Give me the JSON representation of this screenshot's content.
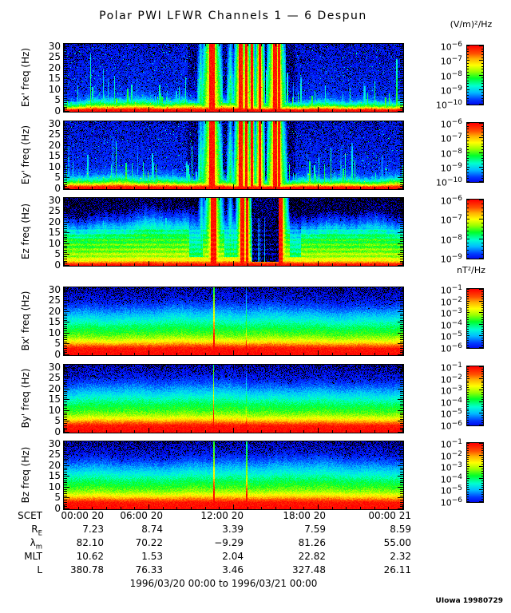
{
  "title": "Polar PWI LFWR Channels 1 — 6 Despun",
  "units": {
    "electric": "(V/m)²/Hz",
    "magnetic": "nT²/Hz"
  },
  "footer": {
    "date_range": "1996/03/20 00:00 to 1996/03/21 00:00",
    "credit": "UIowa 19980729"
  },
  "chart_data": {
    "type": "heatmap",
    "subtype": "spectrogram-stack",
    "title": "Polar PWI LFWR Channels 1 — 6 Despun",
    "colormap": {
      "high": "#ff0000",
      "mid": "#00ff00",
      "low": "#0000ff",
      "background_low": "#000000",
      "meaning": "red = high spectral density, blue/black = low"
    },
    "time_axis": {
      "tick_labels": [
        "00:00 20",
        "06:00 20",
        "12:00 20",
        "18:00 20",
        "00:00 21"
      ],
      "hours_total": 24,
      "major_tick_hours": 6,
      "minor_tick_hours": 1,
      "start": "1996/03/20 00:00",
      "end": "1996/03/21 00:00"
    },
    "freq_axis": {
      "min": 0,
      "max": 31,
      "major_ticks": [
        0,
        5,
        10,
        15,
        20,
        25,
        30
      ],
      "minor_tick_step": 1
    },
    "panels": [
      {
        "id": "ex",
        "ylabel": "Ex' freq (Hz)",
        "unit": "(V/m)²/Hz",
        "style": "E",
        "seed": 11,
        "colorbar_exponents": [
          -6,
          -7,
          -8,
          -9,
          -10
        ],
        "profile": [
          [
            0,
            1
          ],
          [
            0.7,
            0.97
          ],
          [
            1.4,
            0.82
          ],
          [
            2.2,
            0.62
          ],
          [
            3.2,
            0.47
          ],
          [
            4.5,
            0.33
          ],
          [
            6,
            0.21
          ],
          [
            9,
            0.14
          ],
          [
            31,
            0.1
          ]
        ],
        "noise": 0.06,
        "colvar": 0.25,
        "streaks": 85,
        "bursts": [
          [
            0.435,
            6
          ],
          [
            0.52,
            4
          ],
          [
            0.536,
            3
          ],
          [
            0.553,
            2
          ],
          [
            0.576,
            3
          ],
          [
            0.622,
            5
          ],
          [
            0.633,
            3
          ]
        ],
        "gstreaks": [
          0.402,
          0.49,
          0.648
        ],
        "note": "blue background, cyan impulsive streaks, red band below ~2 Hz, intense broadband red bursts ~10:30-15:30 UT"
      },
      {
        "id": "ey",
        "ylabel": "Ey' freq (Hz)",
        "unit": "(V/m)²/Hz",
        "style": "E",
        "seed": 47,
        "colorbar_exponents": [
          -6,
          -7,
          -8,
          -9,
          -10
        ],
        "profile": [
          [
            0,
            1
          ],
          [
            0.7,
            0.97
          ],
          [
            1.4,
            0.82
          ],
          [
            2.2,
            0.62
          ],
          [
            3.2,
            0.47
          ],
          [
            4.5,
            0.33
          ],
          [
            6,
            0.21
          ],
          [
            9,
            0.14
          ],
          [
            31,
            0.1
          ]
        ],
        "noise": 0.06,
        "colvar": 0.25,
        "streaks": 85,
        "bursts": [
          [
            0.435,
            6
          ],
          [
            0.52,
            4
          ],
          [
            0.536,
            3
          ],
          [
            0.553,
            2
          ],
          [
            0.576,
            3
          ],
          [
            0.622,
            5
          ],
          [
            0.633,
            3
          ]
        ],
        "gstreaks": [
          0.402,
          0.49,
          0.648
        ],
        "note": "same morphology as Ex'"
      },
      {
        "id": "ez",
        "ylabel": "Ez freq (Hz)",
        "unit": "(V/m)²/Hz",
        "style": "Ez",
        "seed": 71,
        "colorbar_exponents": [
          -6,
          -7,
          -8,
          -9
        ],
        "profile": [
          [
            0,
            1
          ],
          [
            1,
            0.9
          ],
          [
            2.2,
            0.72
          ],
          [
            4,
            0.63
          ],
          [
            8,
            0.56
          ],
          [
            12,
            0.51
          ],
          [
            15,
            0.43
          ],
          [
            18,
            0.31
          ],
          [
            21,
            0.19
          ],
          [
            24,
            0.11
          ],
          [
            26,
            0.05
          ],
          [
            31,
            0.03
          ]
        ],
        "noise": 0.05,
        "colvar": 0.12,
        "streaks": 45,
        "bursts": [
          [
            0.44,
            6
          ],
          [
            0.524,
            4
          ],
          [
            0.538,
            3
          ],
          [
            0.638,
            5
          ]
        ],
        "gstreaks": [
          0.405,
          0.49
        ],
        "dropout": [
          0.552,
          0.633
        ],
        "banding": true,
        "note": "green/cyan background, black above ~24 Hz, red bursts mid-day, black data-gap region ~13:15-15:10 UT"
      },
      {
        "id": "bx",
        "ylabel": "Bx' freq (Hz)",
        "unit": "nT²/Hz",
        "style": "B",
        "seed": 101,
        "colorbar_exponents": [
          -1,
          -2,
          -3,
          -4,
          -5,
          -6
        ],
        "profile": [
          [
            0,
            1
          ],
          [
            3,
            0.97
          ],
          [
            4.5,
            0.85
          ],
          [
            6,
            0.72
          ],
          [
            8,
            0.6
          ],
          [
            10,
            0.53
          ],
          [
            13,
            0.46
          ],
          [
            16,
            0.37
          ],
          [
            19,
            0.28
          ],
          [
            22,
            0.19
          ],
          [
            25,
            0.12
          ],
          [
            31,
            0.07
          ]
        ],
        "noise": 0.05,
        "colvar": 0.05,
        "streaks": 0,
        "spikes": [
          [
            0.44,
            2,
            0.38
          ],
          [
            0.536,
            1,
            0.75
          ]
        ],
        "note": "smooth red-to-blue falloff with frequency; narrow spike ~10:35 UT, faint spike ~12:50 UT"
      },
      {
        "id": "by",
        "ylabel": "By' freq (Hz)",
        "unit": "nT²/Hz",
        "style": "B",
        "seed": 131,
        "colorbar_exponents": [
          -1,
          -2,
          -3,
          -4,
          -5,
          -6
        ],
        "profile": [
          [
            0,
            1
          ],
          [
            3,
            0.97
          ],
          [
            4.5,
            0.85
          ],
          [
            6,
            0.72
          ],
          [
            8,
            0.6
          ],
          [
            10,
            0.53
          ],
          [
            13,
            0.46
          ],
          [
            16,
            0.37
          ],
          [
            19,
            0.28
          ],
          [
            22,
            0.19
          ],
          [
            25,
            0.12
          ],
          [
            31,
            0.07
          ]
        ],
        "noise": 0.05,
        "colvar": 0.05,
        "streaks": 0,
        "spikes": [
          [
            0.44,
            1,
            0.4
          ],
          [
            0.536,
            1,
            0.85
          ]
        ],
        "note": "smooth red-to-blue falloff; strong narrow spike ~10:35 UT"
      },
      {
        "id": "bz",
        "ylabel": "Bz freq (Hz)",
        "unit": "nT²/Hz",
        "style": "B",
        "seed": 167,
        "colorbar_exponents": [
          -1,
          -2,
          -3,
          -4,
          -5,
          -6
        ],
        "profile": [
          [
            0,
            1
          ],
          [
            3,
            0.97
          ],
          [
            4.5,
            0.85
          ],
          [
            6,
            0.72
          ],
          [
            8,
            0.6
          ],
          [
            10,
            0.53
          ],
          [
            13,
            0.46
          ],
          [
            16,
            0.37
          ],
          [
            19,
            0.28
          ],
          [
            22,
            0.19
          ],
          [
            25,
            0.12
          ],
          [
            31,
            0.07
          ]
        ],
        "noise": 0.05,
        "colvar": 0.05,
        "streaks": 0,
        "spikes": [
          [
            0.44,
            2,
            0.4
          ],
          [
            0.536,
            2,
            0.5
          ]
        ],
        "note": "smooth red-to-blue falloff; spikes ~10:35 and ~12:50 UT"
      }
    ],
    "ephemeris": {
      "rows": [
        {
          "label": "SCET",
          "sub": "",
          "values": [
            "00:00 20",
            "06:00 20",
            "12:00 20",
            "18:00 20",
            "00:00 21"
          ]
        },
        {
          "label": "R",
          "sub": "E",
          "values": [
            "7.23",
            "8.74",
            "3.39",
            "7.59",
            "8.59"
          ]
        },
        {
          "label": "λ",
          "sub": "m",
          "values": [
            "82.10",
            "70.22",
            "−9.29",
            "81.26",
            "55.00"
          ]
        },
        {
          "label": "MLT",
          "sub": "",
          "values": [
            "10.62",
            "1.53",
            "2.04",
            "22.82",
            "2.32"
          ]
        },
        {
          "label": "L",
          "sub": "",
          "values": [
            "380.78",
            "76.33",
            "3.46",
            "327.48",
            "26.11"
          ]
        }
      ]
    }
  }
}
